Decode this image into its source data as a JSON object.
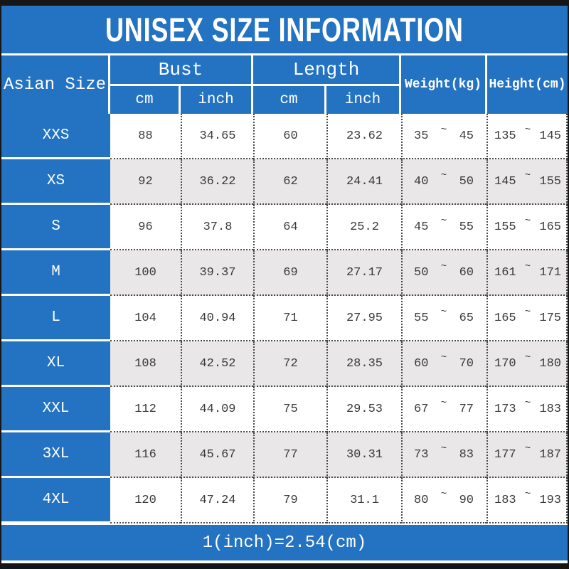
{
  "title": "UNISEX SIZE INFORMATION",
  "header": {
    "asian_size": "Asian Size",
    "bust": "Bust",
    "length": "Length",
    "cm": "cm",
    "inch": "inch",
    "weight": "Weight(kg)",
    "height": "Height(cm)"
  },
  "range_separator": "~",
  "footer_note": "1(inch)=2.54(cm)",
  "colors": {
    "blue": "#2473c3",
    "bar": "#161616",
    "alt": "#e9e7e7",
    "text": "#3a3a3a"
  },
  "chart_data": {
    "type": "table",
    "title": "UNISEX SIZE INFORMATION",
    "columns": [
      "Asian Size",
      "Bust cm",
      "Bust inch",
      "Length cm",
      "Length inch",
      "Weight(kg)",
      "Height(cm)"
    ],
    "rows": [
      {
        "size": "XXS",
        "bust_cm": "88",
        "bust_inch": "34.65",
        "length_cm": "60",
        "length_inch": "23.62",
        "weight": [
          "35",
          "45"
        ],
        "height": [
          "135",
          "145"
        ]
      },
      {
        "size": "XS",
        "bust_cm": "92",
        "bust_inch": "36.22",
        "length_cm": "62",
        "length_inch": "24.41",
        "weight": [
          "40",
          "50"
        ],
        "height": [
          "145",
          "155"
        ]
      },
      {
        "size": "S",
        "bust_cm": "96",
        "bust_inch": "37.8",
        "length_cm": "64",
        "length_inch": "25.2",
        "weight": [
          "45",
          "55"
        ],
        "height": [
          "155",
          "165"
        ]
      },
      {
        "size": "M",
        "bust_cm": "100",
        "bust_inch": "39.37",
        "length_cm": "69",
        "length_inch": "27.17",
        "weight": [
          "50",
          "60"
        ],
        "height": [
          "161",
          "171"
        ]
      },
      {
        "size": "L",
        "bust_cm": "104",
        "bust_inch": "40.94",
        "length_cm": "71",
        "length_inch": "27.95",
        "weight": [
          "55",
          "65"
        ],
        "height": [
          "165",
          "175"
        ]
      },
      {
        "size": "XL",
        "bust_cm": "108",
        "bust_inch": "42.52",
        "length_cm": "72",
        "length_inch": "28.35",
        "weight": [
          "60",
          "70"
        ],
        "height": [
          "170",
          "180"
        ]
      },
      {
        "size": "XXL",
        "bust_cm": "112",
        "bust_inch": "44.09",
        "length_cm": "75",
        "length_inch": "29.53",
        "weight": [
          "67",
          "77"
        ],
        "height": [
          "173",
          "183"
        ]
      },
      {
        "size": "3XL",
        "bust_cm": "116",
        "bust_inch": "45.67",
        "length_cm": "77",
        "length_inch": "30.31",
        "weight": [
          "73",
          "83"
        ],
        "height": [
          "177",
          "187"
        ]
      },
      {
        "size": "4XL",
        "bust_cm": "120",
        "bust_inch": "47.24",
        "length_cm": "79",
        "length_inch": "31.1",
        "weight": [
          "80",
          "90"
        ],
        "height": [
          "183",
          "193"
        ]
      }
    ]
  }
}
